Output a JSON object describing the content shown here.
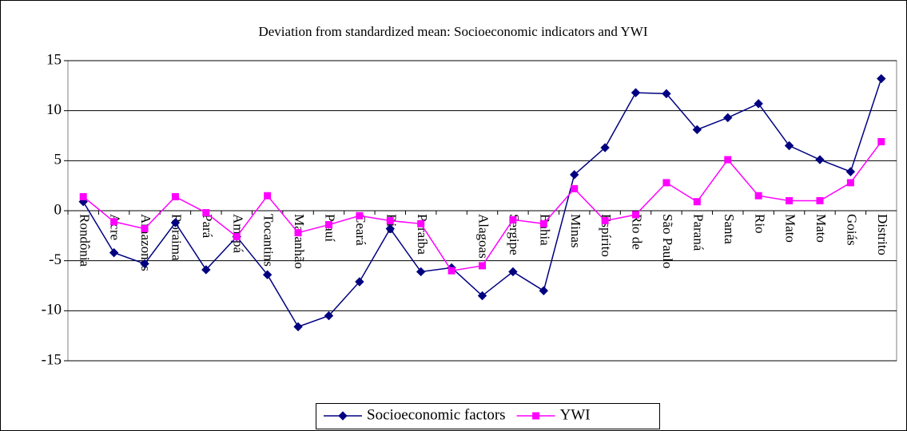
{
  "chart_data": {
    "type": "line",
    "title": "Deviation from standardized mean: Socioeconomic indicators and YWI",
    "categories": [
      "Rondônia",
      "Acre",
      "Amazonas",
      "Roraima",
      "Pará",
      "Amapá",
      "Tocantins",
      "Maranhão",
      "Piauí",
      "Ceará",
      "Rio",
      "Paraíba",
      null,
      "Alagoas",
      "Sergipe",
      "Bahia",
      "Minas",
      "Espírito",
      "Rio de",
      "São Paulo",
      "Paraná",
      "Santa",
      "Rio",
      "Mato",
      "Mato",
      "Goiás",
      "Distrito"
    ],
    "series": [
      {
        "name": "Socioeconomic factors",
        "color": "#000080",
        "marker": "diamond",
        "values": [
          0.9,
          -4.2,
          -5.3,
          -1.2,
          -5.9,
          -2.6,
          -6.4,
          -11.6,
          -10.5,
          -7.1,
          -1.8,
          -6.1,
          -5.7,
          -8.5,
          -6.1,
          -8.0,
          3.6,
          6.3,
          11.8,
          11.7,
          8.1,
          9.3,
          10.7,
          6.5,
          5.1,
          3.9,
          13.2
        ]
      },
      {
        "name": "YWI",
        "color": "#ff00ff",
        "marker": "square",
        "values": [
          1.4,
          -1.1,
          -1.8,
          1.4,
          -0.2,
          -2.6,
          1.5,
          -2.2,
          -1.4,
          -0.5,
          -1.0,
          -1.3,
          -6.0,
          -5.5,
          -0.9,
          -1.3,
          2.2,
          -1.0,
          -0.4,
          2.8,
          0.9,
          5.1,
          1.5,
          1.0,
          1.0,
          2.8,
          6.9
        ]
      }
    ],
    "ylim": [
      -15,
      15
    ],
    "yticks": [
      -15,
      -10,
      -5,
      0,
      5,
      10,
      15
    ],
    "grid": true,
    "legend": "bottom"
  }
}
